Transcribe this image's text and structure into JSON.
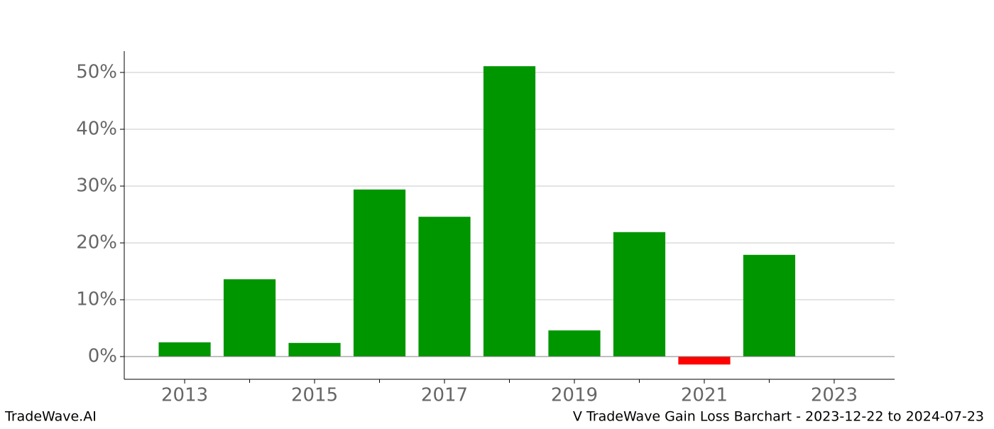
{
  "chart_data": {
    "type": "bar",
    "x": [
      2013,
      2014,
      2015,
      2016,
      2017,
      2018,
      2019,
      2020,
      2021,
      2022
    ],
    "values": [
      2.5,
      13.6,
      2.4,
      29.4,
      24.6,
      51.1,
      4.6,
      21.9,
      -1.4,
      17.9
    ],
    "colors": [
      "#009600",
      "#009600",
      "#009600",
      "#009600",
      "#009600",
      "#009600",
      "#009600",
      "#009600",
      "#ff0000",
      "#009600"
    ],
    "xlim": [
      2012.07,
      2023.93
    ],
    "xticks": [
      2013,
      2015,
      2017,
      2019,
      2021,
      2023
    ],
    "xminorticks": [
      2014,
      2016,
      2018,
      2020,
      2022
    ],
    "ylim": [
      -4,
      53.75
    ],
    "yticks": [
      {
        "value": 0,
        "label": "0%"
      },
      {
        "value": 10,
        "label": "10%"
      },
      {
        "value": 20,
        "label": "20%"
      },
      {
        "value": 30,
        "label": "30%"
      },
      {
        "value": 40,
        "label": "40%"
      },
      {
        "value": 50,
        "label": "50%"
      }
    ],
    "grid": true
  },
  "footer": {
    "left": "TradeWave.AI",
    "right": "V TradeWave Gain Loss Barchart - 2023-12-22 to 2024-07-23"
  }
}
